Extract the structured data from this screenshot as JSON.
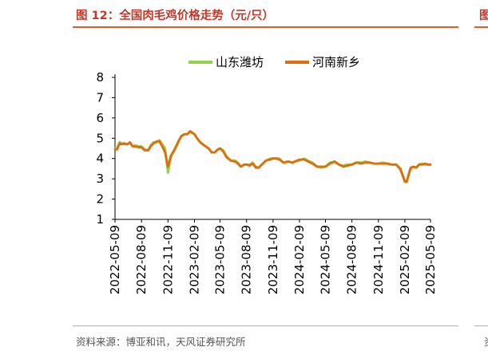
{
  "figure": {
    "title": "图 12：全国肉毛鸡价格走势（元/只）",
    "next_title": "图",
    "source": "资料来源：博亚和讯，天风证券研究所",
    "next_source": "资"
  },
  "colors": {
    "title": "#c0392b",
    "rule": "#d95f2b",
    "shandong": "#92d050",
    "henan": "#e36c0a"
  },
  "chart_data": {
    "type": "line",
    "title": "",
    "xlabel": "",
    "ylabel": "",
    "ylim": [
      1,
      8
    ],
    "yticks": [
      1,
      2,
      3,
      4,
      5,
      6,
      7,
      8
    ],
    "xlim": [
      "2022-05-09",
      "2025-05-09"
    ],
    "xticks": [
      "2022-05-09",
      "2022-08-09",
      "2022-11-09",
      "2023-02-09",
      "2023-05-09",
      "2023-08-09",
      "2023-11-09",
      "2024-02-09",
      "2024-05-09",
      "2024-08-09",
      "2024-11-09",
      "2025-02-09",
      "2025-05-09"
    ],
    "legend_position": "top-center",
    "grid": false,
    "series": [
      {
        "name": "山东潍坊",
        "color": "#92d050",
        "x": [
          "2022-05-09",
          "2022-05-16",
          "2022-05-25",
          "2022-06-01",
          "2022-06-10",
          "2022-06-20",
          "2022-06-30",
          "2022-07-10",
          "2022-07-20",
          "2022-07-30",
          "2022-08-09",
          "2022-08-20",
          "2022-09-01",
          "2022-09-10",
          "2022-09-20",
          "2022-10-01",
          "2022-10-10",
          "2022-10-20",
          "2022-10-30",
          "2022-11-09",
          "2022-11-18",
          "2022-11-23",
          "2022-11-28",
          "2022-12-05",
          "2022-12-15",
          "2022-12-25",
          "2023-01-05",
          "2023-01-15",
          "2023-01-25",
          "2023-02-09",
          "2023-02-18",
          "2023-03-01",
          "2023-03-10",
          "2023-03-20",
          "2023-03-30",
          "2023-04-10",
          "2023-04-20",
          "2023-05-01",
          "2023-05-09",
          "2023-05-20",
          "2023-06-01",
          "2023-06-15",
          "2023-06-30",
          "2023-07-10",
          "2023-07-20",
          "2023-08-01",
          "2023-08-09",
          "2023-08-20",
          "2023-08-30",
          "2023-09-10",
          "2023-09-20",
          "2023-10-01",
          "2023-10-15",
          "2023-10-30",
          "2023-11-09",
          "2023-11-20",
          "2023-12-01",
          "2023-12-15",
          "2024-01-01",
          "2024-01-15",
          "2024-02-01",
          "2024-02-09",
          "2024-02-25",
          "2024-03-10",
          "2024-03-25",
          "2024-04-10",
          "2024-04-25",
          "2024-05-09",
          "2024-05-25",
          "2024-06-10",
          "2024-06-25",
          "2024-07-10",
          "2024-07-25",
          "2024-08-09",
          "2024-08-25",
          "2024-09-10",
          "2024-09-25",
          "2024-10-10",
          "2024-10-25",
          "2024-11-09",
          "2024-11-25",
          "2024-12-10",
          "2024-12-25",
          "2025-01-10",
          "2025-01-25",
          "2025-02-09",
          "2025-02-15",
          "2025-02-22",
          "2025-03-01",
          "2025-03-10",
          "2025-03-20",
          "2025-03-30",
          "2025-04-10",
          "2025-04-20",
          "2025-05-01",
          "2025-05-09"
        ],
        "values": [
          4.5,
          4.5,
          4.8,
          4.75,
          4.7,
          4.7,
          4.75,
          4.6,
          4.65,
          4.6,
          4.6,
          4.45,
          4.4,
          4.65,
          4.8,
          4.8,
          4.9,
          4.7,
          4.5,
          3.3,
          4.0,
          4.2,
          4.3,
          4.5,
          4.8,
          5.1,
          5.2,
          5.2,
          5.3,
          5.2,
          5.0,
          4.8,
          4.7,
          4.6,
          4.5,
          4.3,
          4.3,
          4.45,
          4.5,
          4.4,
          4.1,
          3.9,
          3.9,
          3.8,
          3.6,
          3.7,
          3.7,
          3.7,
          3.8,
          3.6,
          3.55,
          3.7,
          3.9,
          4.0,
          4.0,
          4.0,
          4.0,
          3.8,
          3.85,
          3.8,
          3.9,
          3.9,
          4.0,
          3.9,
          3.8,
          3.6,
          3.55,
          3.6,
          3.8,
          3.85,
          3.7,
          3.65,
          3.7,
          3.7,
          3.8,
          3.8,
          3.85,
          3.8,
          3.75,
          3.75,
          3.8,
          3.75,
          3.7,
          3.7,
          3.5,
          2.9,
          2.85,
          3.2,
          3.5,
          3.6,
          3.55,
          3.7,
          3.75,
          3.7,
          3.7,
          3.7
        ]
      },
      {
        "name": "河南新乡",
        "color": "#e36c0a",
        "x": [
          "2022-05-09",
          "2022-05-16",
          "2022-05-25",
          "2022-06-01",
          "2022-06-10",
          "2022-06-20",
          "2022-06-30",
          "2022-07-10",
          "2022-07-20",
          "2022-07-30",
          "2022-08-09",
          "2022-08-20",
          "2022-09-01",
          "2022-09-10",
          "2022-09-20",
          "2022-10-01",
          "2022-10-10",
          "2022-10-20",
          "2022-10-30",
          "2022-11-09",
          "2022-11-18",
          "2022-11-23",
          "2022-11-28",
          "2022-12-05",
          "2022-12-15",
          "2022-12-25",
          "2023-01-05",
          "2023-01-15",
          "2023-01-25",
          "2023-02-09",
          "2023-02-18",
          "2023-03-01",
          "2023-03-10",
          "2023-03-20",
          "2023-03-30",
          "2023-04-10",
          "2023-04-20",
          "2023-05-01",
          "2023-05-09",
          "2023-05-20",
          "2023-06-01",
          "2023-06-15",
          "2023-06-30",
          "2023-07-10",
          "2023-07-20",
          "2023-08-01",
          "2023-08-09",
          "2023-08-20",
          "2023-08-30",
          "2023-09-10",
          "2023-09-20",
          "2023-10-01",
          "2023-10-15",
          "2023-10-30",
          "2023-11-09",
          "2023-11-20",
          "2023-12-01",
          "2023-12-15",
          "2024-01-01",
          "2024-01-15",
          "2024-02-01",
          "2024-02-09",
          "2024-02-25",
          "2024-03-10",
          "2024-03-25",
          "2024-04-10",
          "2024-04-25",
          "2024-05-09",
          "2024-05-25",
          "2024-06-10",
          "2024-06-25",
          "2024-07-10",
          "2024-07-25",
          "2024-08-09",
          "2024-08-25",
          "2024-09-10",
          "2024-09-25",
          "2024-10-10",
          "2024-10-25",
          "2024-11-09",
          "2024-11-25",
          "2024-12-10",
          "2024-12-25",
          "2025-01-10",
          "2025-01-25",
          "2025-02-09",
          "2025-02-15",
          "2025-02-22",
          "2025-03-01",
          "2025-03-10",
          "2025-03-20",
          "2025-03-30",
          "2025-04-10",
          "2025-04-20",
          "2025-05-01",
          "2025-05-09"
        ],
        "values": [
          4.45,
          4.45,
          4.75,
          4.7,
          4.75,
          4.7,
          4.8,
          4.6,
          4.6,
          4.55,
          4.55,
          4.4,
          4.4,
          4.6,
          4.75,
          4.85,
          4.85,
          4.6,
          4.3,
          3.6,
          4.1,
          4.25,
          4.35,
          4.55,
          4.85,
          5.1,
          5.2,
          5.2,
          5.35,
          5.2,
          5.0,
          4.8,
          4.7,
          4.6,
          4.5,
          4.3,
          4.3,
          4.45,
          4.5,
          4.35,
          4.05,
          3.9,
          3.85,
          3.75,
          3.6,
          3.7,
          3.7,
          3.65,
          3.75,
          3.55,
          3.55,
          3.7,
          3.9,
          3.95,
          4.0,
          4.0,
          3.95,
          3.8,
          3.85,
          3.8,
          3.9,
          3.95,
          3.95,
          3.85,
          3.75,
          3.6,
          3.6,
          3.6,
          3.75,
          3.85,
          3.7,
          3.6,
          3.65,
          3.7,
          3.8,
          3.75,
          3.8,
          3.8,
          3.75,
          3.75,
          3.75,
          3.75,
          3.7,
          3.7,
          3.45,
          2.85,
          2.85,
          3.2,
          3.55,
          3.6,
          3.55,
          3.7,
          3.7,
          3.75,
          3.7,
          3.7
        ]
      }
    ]
  }
}
